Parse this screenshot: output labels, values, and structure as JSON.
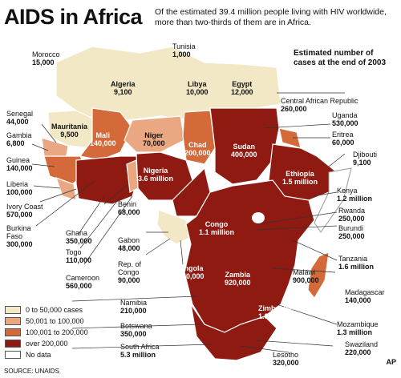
{
  "title": "AIDS in Africa",
  "subtitle": "Of the estimated 39.4 million people living with HIV worldwide, more than two-thirds of them are in Africa.",
  "estimate_note": "Estimated number of cases at the end of 2003",
  "colors": {
    "c0_50k": "#f3e8c5",
    "c50_100k": "#e9a882",
    "c100_200k": "#d46a3a",
    "c_over200k": "#8e1a12",
    "no_data": "#ffffff",
    "sea": "#ffffff",
    "border": "#ffffff"
  },
  "legend": [
    {
      "label": "0 to 50,000 cases",
      "color": "#f3e8c5"
    },
    {
      "label": "50,001 to 100,000",
      "color": "#e9a882"
    },
    {
      "label": "100,001 to 200,000",
      "color": "#d46a3a"
    },
    {
      "label": "over 200,000",
      "color": "#8e1a12"
    },
    {
      "label": "No data",
      "color": "#ffffff"
    }
  ],
  "countries": {
    "morocco": {
      "name": "Morocco",
      "value": "15,000"
    },
    "tunisia": {
      "name": "Tunisia",
      "value": "1,000"
    },
    "algeria": {
      "name": "Algeria",
      "value": "9,100"
    },
    "libya": {
      "name": "Libya",
      "value": "10,000"
    },
    "egypt": {
      "name": "Egypt",
      "value": "12,000"
    },
    "senegal": {
      "name": "Senegal",
      "value": "44,000"
    },
    "gambia": {
      "name": "Gambia",
      "value": "6,800"
    },
    "mauritania": {
      "name": "Mauritania",
      "value": "9,500"
    },
    "mali": {
      "name": "Mali",
      "value": "140,000"
    },
    "niger": {
      "name": "Niger",
      "value": "70,000"
    },
    "chad": {
      "name": "Chad",
      "value": "200,000"
    },
    "sudan": {
      "name": "Sudan",
      "value": "400,000"
    },
    "car": {
      "name": "Central African Republic",
      "value": "260,000"
    },
    "uganda": {
      "name": "Uganda",
      "value": "530,000"
    },
    "eritrea": {
      "name": "Eritrea",
      "value": "60,000"
    },
    "djibouti": {
      "name": "Djibouti",
      "value": "9,100"
    },
    "ethiopia": {
      "name": "Ethiopia",
      "value": "1.5 million"
    },
    "guinea": {
      "name": "Guinea",
      "value": "140,000"
    },
    "liberia": {
      "name": "Liberia",
      "value": "100,000"
    },
    "ivory_coast": {
      "name": "Ivory Coast",
      "value": "570,000"
    },
    "burkina_faso": {
      "name": "Burkina Faso",
      "value": "300,000"
    },
    "ghana": {
      "name": "Ghana",
      "value": "350,000"
    },
    "togo": {
      "name": "Togo",
      "value": "110,000"
    },
    "cameroon": {
      "name": "Cameroon",
      "value": "560,000"
    },
    "nigeria": {
      "name": "Nigeria",
      "value": "3.6 million"
    },
    "benin": {
      "name": "Benin",
      "value": "68,000"
    },
    "gabon": {
      "name": "Gabon",
      "value": "48,000"
    },
    "rep_congo": {
      "name": "Rep. of Congo",
      "value": "90,000"
    },
    "congo": {
      "name": "Congo",
      "value": "1.1 million"
    },
    "kenya": {
      "name": "Kenya",
      "value": "1.2 million"
    },
    "rwanda": {
      "name": "Rwanda",
      "value": "250,000"
    },
    "burundi": {
      "name": "Burundi",
      "value": "250,000"
    },
    "tanzania": {
      "name": "Tanzania",
      "value": "1.6 million"
    },
    "angola": {
      "name": "Angola",
      "value": "240,000"
    },
    "zambia": {
      "name": "Zambia",
      "value": "920,000"
    },
    "malawi": {
      "name": "Malawi",
      "value": "900,000"
    },
    "madagascar": {
      "name": "Madagascar",
      "value": "140,000"
    },
    "zimbabwe": {
      "name": "Zimbabwe",
      "value": "1.8 million"
    },
    "mozambique": {
      "name": "Mozambique",
      "value": "1.3 million"
    },
    "namibia": {
      "name": "Namibia",
      "value": "210,000"
    },
    "botswana": {
      "name": "Botswana",
      "value": "350,000"
    },
    "south_africa": {
      "name": "South Africa",
      "value": "5.3 million"
    },
    "swaziland": {
      "name": "Swaziland",
      "value": "220,000"
    },
    "lesotho": {
      "name": "Lesotho",
      "value": "320,000"
    }
  },
  "source": "SOURCE: UNAIDS",
  "credit": "AP"
}
